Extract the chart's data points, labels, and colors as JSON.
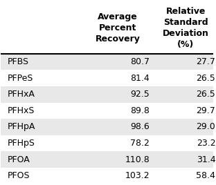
{
  "compounds": [
    "PFBS",
    "PFPeS",
    "PFHxA",
    "PFHxS",
    "PFHpA",
    "PFHpS",
    "PFOA",
    "PFOS"
  ],
  "avg_recovery": [
    80.7,
    81.4,
    92.5,
    89.8,
    98.6,
    78.2,
    110.8,
    103.2
  ],
  "rsd": [
    27.7,
    26.5,
    26.5,
    29.7,
    29.0,
    23.2,
    31.4,
    58.4
  ],
  "col1_header": [
    "Average",
    "Percent",
    "Recovery"
  ],
  "col2_header": [
    "Relative",
    "Standard",
    "Deviation",
    "(%)"
  ],
  "row_colors": [
    "#e8e8e8",
    "#ffffff",
    "#e8e8e8",
    "#ffffff",
    "#e8e8e8",
    "#ffffff",
    "#e8e8e8",
    "#ffffff"
  ],
  "bg_color": "#ffffff",
  "text_color": "#000000",
  "header_line_color": "#000000",
  "font_size": 9,
  "header_font_size": 9
}
